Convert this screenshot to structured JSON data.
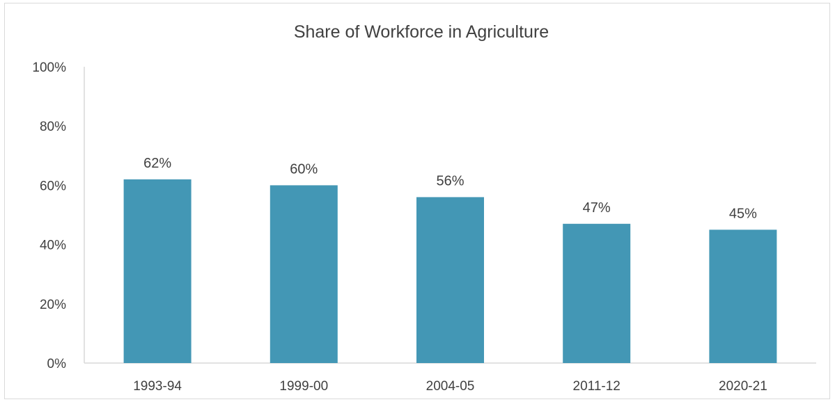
{
  "chart_data": {
    "type": "bar",
    "title": "Share of Workforce in Agriculture",
    "xlabel": "",
    "ylabel": "",
    "categories": [
      "1993-94",
      "1999-00",
      "2004-05",
      "2011-12",
      "2020-21"
    ],
    "values": [
      62,
      60,
      56,
      47,
      45
    ],
    "value_labels": [
      "62%",
      "60%",
      "56%",
      "47%",
      "45%"
    ],
    "ylim": [
      0,
      100
    ],
    "y_ticks": [
      0,
      20,
      40,
      60,
      80,
      100
    ],
    "y_tick_labels": [
      "0%",
      "20%",
      "40%",
      "60%",
      "80%",
      "100%"
    ],
    "grid": false,
    "legend": "none",
    "bar_color": "#4397b5",
    "axis_color": "#d9d9d9",
    "text_color": "#404040"
  }
}
